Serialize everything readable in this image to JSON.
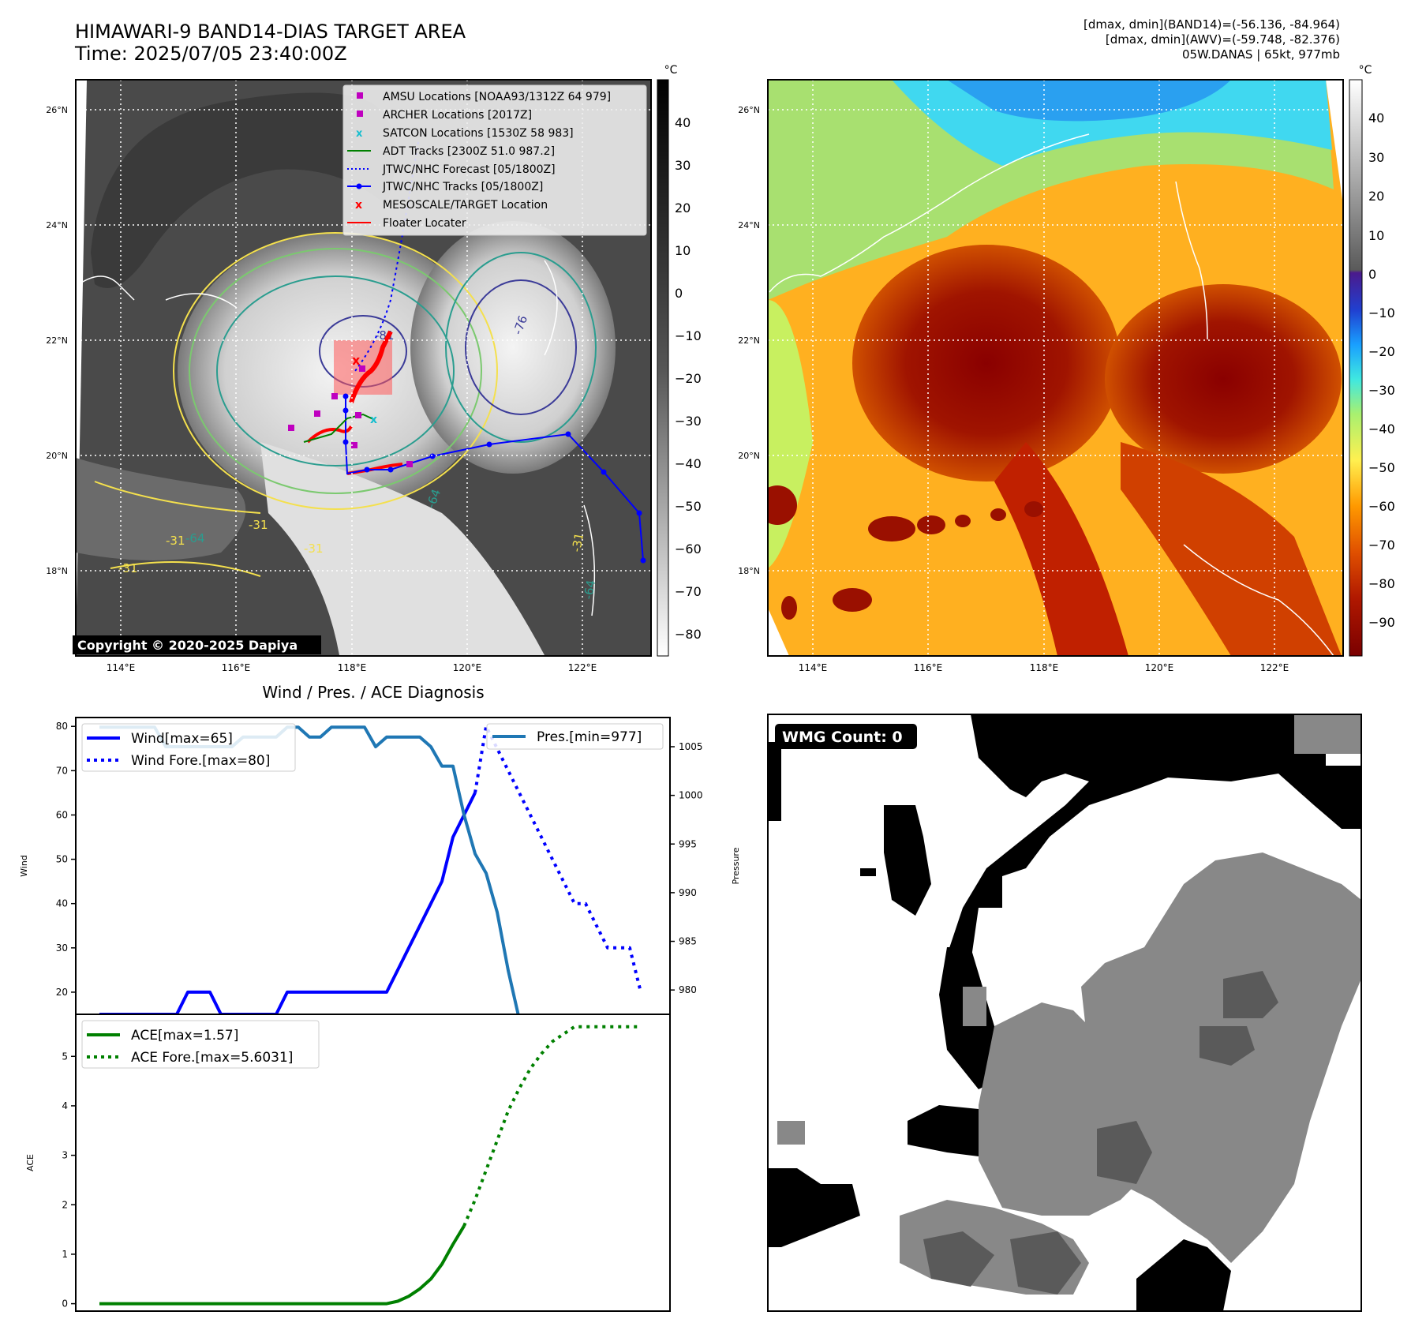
{
  "header": {
    "title_line1": "HIMAWARI-9 BAND14-DIAS TARGET AREA",
    "title_line2": "Time: 2025/07/05 23:40:00Z",
    "stats_line1": "[dmax, dmin](BAND14)=(-56.136, -84.964)",
    "stats_line2": "[dmax, dmin](AWV)=(-59.748, -82.376)",
    "stats_line3": "05W.DANAS | 65kt, 977mb"
  },
  "map": {
    "lat_labels": [
      "26°N",
      "24°N",
      "22°N",
      "20°N",
      "18°N"
    ],
    "lon_labels": [
      "114°E",
      "116°E",
      "118°E",
      "120°E",
      "122°E"
    ],
    "copyright": "Copyright © 2020-2025 Dapiya",
    "contour_labels": [
      "-31",
      "-64",
      "-76",
      "-81",
      "-64",
      "-31",
      "-31",
      "-31",
      "-64",
      "-31"
    ]
  },
  "legend": {
    "items": [
      {
        "label": "AMSU Locations [NOAA93/1312Z 64 979]",
        "marker": "square",
        "color": "#bf00bf"
      },
      {
        "label": "ARCHER Locations [2017Z]",
        "marker": "square",
        "color": "#bf00bf"
      },
      {
        "label": "SATCON Locations [1530Z 58 983]",
        "marker": "x",
        "color": "#17becf"
      },
      {
        "label": "ADT Tracks [2300Z 51.0 987.2]",
        "marker": "line",
        "color": "#008000"
      },
      {
        "label": "JTWC/NHC Forecast [05/1800Z]",
        "marker": "dotted",
        "color": "#0000ff"
      },
      {
        "label": "JTWC/NHC Tracks [05/1800Z]",
        "marker": "line-dot",
        "color": "#0000ff"
      },
      {
        "label": "MESOSCALE/TARGET Location",
        "marker": "x",
        "color": "#ff0000"
      },
      {
        "label": "Floater Locater",
        "marker": "line",
        "color": "#ff0000"
      }
    ]
  },
  "colorbar_gray": {
    "unit": "°C",
    "ticks": [
      "40",
      "30",
      "20",
      "10",
      "0",
      "−10",
      "−20",
      "−30",
      "−40",
      "−50",
      "−60",
      "−70",
      "−80"
    ]
  },
  "colorbar_color": {
    "unit": "°C",
    "ticks": [
      "40",
      "30",
      "20",
      "10",
      "0",
      "−10",
      "−20",
      "−30",
      "−40",
      "−50",
      "−60",
      "−70",
      "−80",
      "−90"
    ]
  },
  "chart_data": [
    {
      "type": "line",
      "title": "Wind / Pres. / ACE Diagnosis",
      "ylabel": "Wind",
      "y2label": "Pressure",
      "ylim": [
        15,
        82
      ],
      "y2lim": [
        977.5,
        1008
      ],
      "yticks": [
        20,
        30,
        40,
        50,
        60,
        70,
        80
      ],
      "y2ticks": [
        980,
        985,
        990,
        995,
        1000,
        1005
      ],
      "series": [
        {
          "name": "Wind[max=65]",
          "axis": "left",
          "style": "solid",
          "color": "#0000ff",
          "values": [
            15,
            15,
            15,
            15,
            15,
            15,
            15,
            15,
            20,
            20,
            20,
            15,
            15,
            15,
            15,
            15,
            15,
            20,
            20,
            20,
            20,
            20,
            20,
            20,
            20,
            20,
            20,
            25,
            30,
            35,
            40,
            45,
            55,
            60,
            65
          ]
        },
        {
          "name": "Wind Fore.[max=80]",
          "axis": "left",
          "style": "dotted",
          "color": "#0000ff",
          "values": [
            null,
            null,
            null,
            null,
            null,
            null,
            null,
            null,
            null,
            null,
            null,
            null,
            null,
            null,
            null,
            null,
            null,
            null,
            null,
            null,
            null,
            null,
            null,
            null,
            null,
            null,
            null,
            null,
            null,
            null,
            null,
            null,
            null,
            null,
            65,
            80,
            75,
            70,
            65,
            60,
            55,
            50,
            45,
            40,
            40,
            35,
            30,
            30,
            30,
            20
          ]
        },
        {
          "name": "Pres.[min=977]",
          "axis": "right",
          "style": "solid",
          "color": "#1f77b4",
          "values": [
            1007,
            1007,
            1007,
            1007,
            1007,
            1007,
            1005,
            1005,
            1005,
            1005,
            1005,
            1005,
            1005,
            1006,
            1006,
            1006,
            1006,
            1007,
            1007,
            1006,
            1006,
            1007,
            1007,
            1007,
            1007,
            1005,
            1006,
            1006,
            1006,
            1006,
            1005,
            1003,
            1003,
            998,
            994,
            992,
            988,
            982,
            977
          ]
        }
      ]
    },
    {
      "type": "line",
      "ylabel": "ACE",
      "ylim": [
        -0.15,
        5.85
      ],
      "yticks": [
        0,
        1,
        2,
        3,
        4,
        5
      ],
      "series": [
        {
          "name": "ACE[max=1.57]",
          "style": "solid",
          "color": "#008000",
          "values": [
            0,
            0,
            0,
            0,
            0,
            0,
            0,
            0,
            0,
            0,
            0,
            0,
            0,
            0,
            0,
            0,
            0,
            0,
            0,
            0,
            0,
            0,
            0,
            0,
            0,
            0,
            0,
            0.05,
            0.15,
            0.3,
            0.5,
            0.8,
            1.2,
            1.57
          ]
        },
        {
          "name": "ACE Fore.[max=5.6031]",
          "style": "dotted",
          "color": "#008000",
          "values": [
            null,
            null,
            null,
            null,
            null,
            null,
            null,
            null,
            null,
            null,
            null,
            null,
            null,
            null,
            null,
            null,
            null,
            null,
            null,
            null,
            null,
            null,
            null,
            null,
            null,
            null,
            null,
            null,
            null,
            null,
            null,
            null,
            null,
            1.57,
            2.1,
            2.7,
            3.3,
            3.9,
            4.35,
            4.75,
            5.05,
            5.3,
            5.45,
            5.6,
            5.6,
            5.6,
            5.6,
            5.6,
            5.6,
            5.6
          ]
        }
      ]
    }
  ],
  "wmg": {
    "label": "WMG Count: 0"
  }
}
